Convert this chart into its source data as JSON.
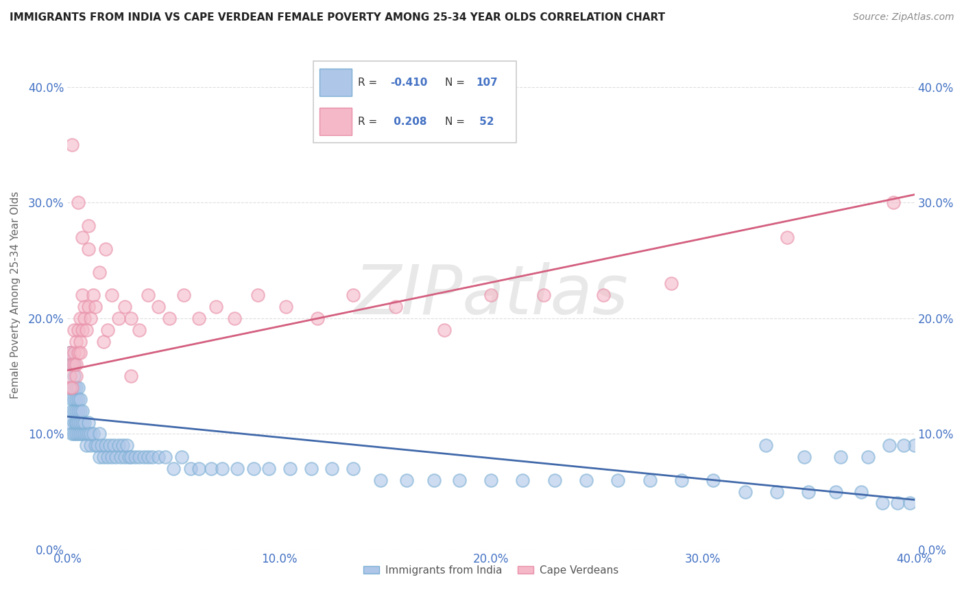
{
  "title": "IMMIGRANTS FROM INDIA VS CAPE VERDEAN FEMALE POVERTY AMONG 25-34 YEAR OLDS CORRELATION CHART",
  "source": "Source: ZipAtlas.com",
  "ylabel": "Female Poverty Among 25-34 Year Olds",
  "xlim": [
    0.0,
    0.4
  ],
  "ylim": [
    0.0,
    0.44
  ],
  "xticks": [
    0.0,
    0.1,
    0.2,
    0.3,
    0.4
  ],
  "xtick_labels": [
    "0.0%",
    "10.0%",
    "20.0%",
    "30.0%",
    "40.0%"
  ],
  "yticks": [
    0.0,
    0.1,
    0.2,
    0.3,
    0.4
  ],
  "ytick_labels": [
    "0.0%",
    "10.0%",
    "20.0%",
    "30.0%",
    "40.0%"
  ],
  "blue_color": "#AEC6E8",
  "pink_color": "#F4B8C8",
  "blue_edge_color": "#7BAFD4",
  "pink_edge_color": "#E88FA8",
  "blue_line_color": "#4169AA",
  "pink_line_color": "#D46080",
  "grid_color": "#DDDDDD",
  "watermark": "ZIPatlas",
  "watermark_color": "#CCCCCC",
  "blue_r": -0.41,
  "blue_n": 107,
  "pink_r": 0.208,
  "pink_n": 52,
  "blue_intercept": 0.115,
  "blue_slope": -0.18,
  "pink_intercept": 0.155,
  "pink_slope": 0.38,
  "blue_x": [
    0.001,
    0.001,
    0.001,
    0.002,
    0.002,
    0.002,
    0.002,
    0.003,
    0.003,
    0.003,
    0.003,
    0.003,
    0.003,
    0.003,
    0.004,
    0.004,
    0.004,
    0.004,
    0.004,
    0.004,
    0.005,
    0.005,
    0.005,
    0.005,
    0.005,
    0.006,
    0.006,
    0.006,
    0.006,
    0.007,
    0.007,
    0.007,
    0.008,
    0.008,
    0.009,
    0.009,
    0.01,
    0.01,
    0.011,
    0.011,
    0.012,
    0.013,
    0.014,
    0.015,
    0.015,
    0.016,
    0.017,
    0.018,
    0.019,
    0.02,
    0.021,
    0.022,
    0.023,
    0.024,
    0.025,
    0.026,
    0.027,
    0.028,
    0.029,
    0.03,
    0.032,
    0.034,
    0.036,
    0.038,
    0.04,
    0.043,
    0.046,
    0.05,
    0.054,
    0.058,
    0.062,
    0.068,
    0.073,
    0.08,
    0.088,
    0.095,
    0.105,
    0.115,
    0.125,
    0.135,
    0.148,
    0.16,
    0.173,
    0.185,
    0.2,
    0.215,
    0.23,
    0.245,
    0.26,
    0.275,
    0.29,
    0.305,
    0.32,
    0.335,
    0.35,
    0.363,
    0.375,
    0.385,
    0.392,
    0.398,
    0.4,
    0.395,
    0.388,
    0.378,
    0.365,
    0.348,
    0.33
  ],
  "blue_y": [
    0.14,
    0.11,
    0.17,
    0.13,
    0.1,
    0.12,
    0.16,
    0.14,
    0.11,
    0.13,
    0.12,
    0.1,
    0.15,
    0.16,
    0.12,
    0.11,
    0.14,
    0.13,
    0.1,
    0.11,
    0.12,
    0.1,
    0.13,
    0.11,
    0.14,
    0.11,
    0.12,
    0.1,
    0.13,
    0.1,
    0.11,
    0.12,
    0.1,
    0.11,
    0.1,
    0.09,
    0.1,
    0.11,
    0.09,
    0.1,
    0.1,
    0.09,
    0.09,
    0.08,
    0.1,
    0.09,
    0.08,
    0.09,
    0.08,
    0.09,
    0.08,
    0.09,
    0.08,
    0.09,
    0.08,
    0.09,
    0.08,
    0.09,
    0.08,
    0.08,
    0.08,
    0.08,
    0.08,
    0.08,
    0.08,
    0.08,
    0.08,
    0.07,
    0.08,
    0.07,
    0.07,
    0.07,
    0.07,
    0.07,
    0.07,
    0.07,
    0.07,
    0.07,
    0.07,
    0.07,
    0.06,
    0.06,
    0.06,
    0.06,
    0.06,
    0.06,
    0.06,
    0.06,
    0.06,
    0.06,
    0.06,
    0.06,
    0.05,
    0.05,
    0.05,
    0.05,
    0.05,
    0.04,
    0.04,
    0.04,
    0.09,
    0.09,
    0.09,
    0.08,
    0.08,
    0.08,
    0.09
  ],
  "pink_x": [
    0.001,
    0.001,
    0.001,
    0.002,
    0.002,
    0.003,
    0.003,
    0.003,
    0.004,
    0.004,
    0.004,
    0.005,
    0.005,
    0.006,
    0.006,
    0.006,
    0.007,
    0.007,
    0.008,
    0.008,
    0.009,
    0.01,
    0.011,
    0.012,
    0.013,
    0.015,
    0.017,
    0.019,
    0.021,
    0.024,
    0.027,
    0.03,
    0.034,
    0.038,
    0.043,
    0.048,
    0.055,
    0.062,
    0.07,
    0.079,
    0.09,
    0.103,
    0.118,
    0.135,
    0.155,
    0.178,
    0.2,
    0.225,
    0.253,
    0.285,
    0.34,
    0.39
  ],
  "pink_y": [
    0.17,
    0.14,
    0.15,
    0.16,
    0.14,
    0.17,
    0.19,
    0.16,
    0.18,
    0.15,
    0.16,
    0.19,
    0.17,
    0.18,
    0.2,
    0.17,
    0.22,
    0.19,
    0.21,
    0.2,
    0.19,
    0.21,
    0.2,
    0.22,
    0.21,
    0.24,
    0.18,
    0.19,
    0.22,
    0.2,
    0.21,
    0.2,
    0.19,
    0.22,
    0.21,
    0.2,
    0.22,
    0.2,
    0.21,
    0.2,
    0.22,
    0.21,
    0.2,
    0.22,
    0.21,
    0.19,
    0.22,
    0.22,
    0.22,
    0.23,
    0.27,
    0.3
  ],
  "pink_outliers_x": [
    0.002,
    0.005,
    0.007,
    0.01,
    0.01,
    0.018,
    0.03
  ],
  "pink_outliers_y": [
    0.35,
    0.3,
    0.27,
    0.28,
    0.26,
    0.26,
    0.15
  ]
}
